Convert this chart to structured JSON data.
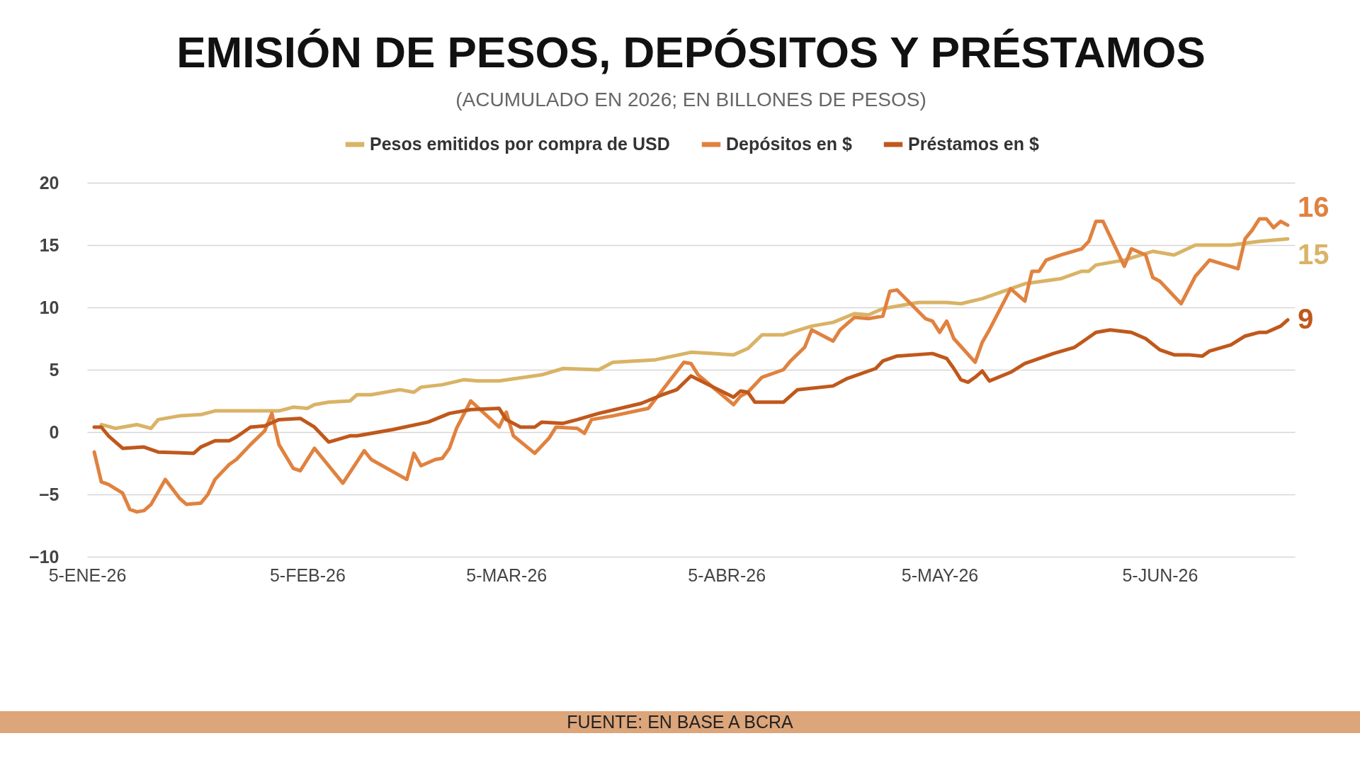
{
  "chart_data": {
    "type": "line",
    "title": "EMISIÓN DE PESOS, DEPÓSITOS Y PRÉSTAMOS",
    "subtitle": "(ACUMULADO EN 2026; EN BILLONES DE PESOS)",
    "series": [
      {
        "name": "Pesos emitidos por compra de USD",
        "color": "#d9b366",
        "x": [
          "2026-01-07",
          "2026-01-09",
          "2026-01-12",
          "2026-01-14",
          "2026-01-15",
          "2026-01-18",
          "2026-01-21",
          "2026-01-23",
          "2026-02-01",
          "2026-02-03",
          "2026-02-05",
          "2026-02-06",
          "2026-02-08",
          "2026-02-11",
          "2026-02-12",
          "2026-02-14",
          "2026-02-18",
          "2026-02-20",
          "2026-02-21",
          "2026-02-24",
          "2026-02-27",
          "2026-03-01",
          "2026-03-04",
          "2026-03-10",
          "2026-03-13",
          "2026-03-18",
          "2026-03-20",
          "2026-03-26",
          "2026-03-31",
          "2026-04-06",
          "2026-04-08",
          "2026-04-10",
          "2026-04-13",
          "2026-04-17",
          "2026-04-20",
          "2026-04-23",
          "2026-04-25",
          "2026-04-27",
          "2026-05-02",
          "2026-05-06",
          "2026-05-08",
          "2026-05-11",
          "2026-05-17",
          "2026-05-22",
          "2026-05-25",
          "2026-05-26",
          "2026-05-27",
          "2026-05-31",
          "2026-06-04",
          "2026-06-07",
          "2026-06-10",
          "2026-06-15",
          "2026-06-19",
          "2026-06-23"
        ],
        "values": [
          0.6,
          0.3,
          0.6,
          0.3,
          1.0,
          1.3,
          1.4,
          1.7,
          1.7,
          2.0,
          1.9,
          2.2,
          2.4,
          2.5,
          3.0,
          3.0,
          3.4,
          3.2,
          3.6,
          3.8,
          4.2,
          4.1,
          4.1,
          4.6,
          5.1,
          5.0,
          5.6,
          5.8,
          6.4,
          6.2,
          6.7,
          7.8,
          7.8,
          8.5,
          8.8,
          9.5,
          9.4,
          9.9,
          10.4,
          10.4,
          10.3,
          10.7,
          11.9,
          12.3,
          12.9,
          12.9,
          13.4,
          13.8,
          14.5,
          14.2,
          15.0,
          15.0,
          15.3,
          15.5
        ]
      },
      {
        "name": "Depósitos en $",
        "color": "#e0823f",
        "x": [
          "2026-01-06",
          "2026-01-07",
          "2026-01-08",
          "2026-01-10",
          "2026-01-11",
          "2026-01-12",
          "2026-01-13",
          "2026-01-14",
          "2026-01-15",
          "2026-01-16",
          "2026-01-18",
          "2026-01-19",
          "2026-01-21",
          "2026-01-22",
          "2026-01-23",
          "2026-01-25",
          "2026-01-26",
          "2026-01-28",
          "2026-01-30",
          "2026-01-31",
          "2026-02-01",
          "2026-02-03",
          "2026-02-04",
          "2026-02-06",
          "2026-02-08",
          "2026-02-10",
          "2026-02-13",
          "2026-02-14",
          "2026-02-19",
          "2026-02-20",
          "2026-02-21",
          "2026-02-23",
          "2026-02-24",
          "2026-02-25",
          "2026-02-26",
          "2026-02-28",
          "2026-03-04",
          "2026-03-05",
          "2026-03-06",
          "2026-03-09",
          "2026-03-11",
          "2026-03-12",
          "2026-03-15",
          "2026-03-16",
          "2026-03-17",
          "2026-03-20",
          "2026-03-25",
          "2026-03-30",
          "2026-03-31",
          "2026-04-01",
          "2026-04-06",
          "2026-04-07",
          "2026-04-08",
          "2026-04-10",
          "2026-04-13",
          "2026-04-14",
          "2026-04-16",
          "2026-04-17",
          "2026-04-20",
          "2026-04-21",
          "2026-04-23",
          "2026-04-25",
          "2026-04-27",
          "2026-04-28",
          "2026-04-29",
          "2026-05-03",
          "2026-05-04",
          "2026-05-05",
          "2026-05-06",
          "2026-05-07",
          "2026-05-10",
          "2026-05-11",
          "2026-05-12",
          "2026-05-15",
          "2026-05-17",
          "2026-05-18",
          "2026-05-19",
          "2026-05-20",
          "2026-05-22",
          "2026-05-25",
          "2026-05-26",
          "2026-05-27",
          "2026-05-28",
          "2026-05-31",
          "2026-06-01",
          "2026-06-03",
          "2026-06-04",
          "2026-06-05",
          "2026-06-08",
          "2026-06-10",
          "2026-06-12",
          "2026-06-16",
          "2026-06-17",
          "2026-06-18",
          "2026-06-19",
          "2026-06-20",
          "2026-06-21",
          "2026-06-22",
          "2026-06-23"
        ],
        "values": [
          -1.6,
          -4.0,
          -4.2,
          -4.9,
          -6.2,
          -6.4,
          -6.3,
          -5.8,
          -4.8,
          -3.8,
          -5.3,
          -5.8,
          -5.7,
          -5.0,
          -3.8,
          -2.6,
          -2.2,
          -1.0,
          0.1,
          1.5,
          -1.0,
          -2.9,
          -3.1,
          -1.3,
          -2.7,
          -4.1,
          -1.5,
          -2.2,
          -3.8,
          -1.7,
          -2.7,
          -2.2,
          -2.1,
          -1.3,
          0.3,
          2.5,
          0.4,
          1.6,
          -0.3,
          -1.7,
          -0.5,
          0.4,
          0.3,
          -0.1,
          1.0,
          1.3,
          1.9,
          5.6,
          5.5,
          4.6,
          2.2,
          2.9,
          3.2,
          4.4,
          5.0,
          5.7,
          6.8,
          8.2,
          7.3,
          8.2,
          9.2,
          9.1,
          9.3,
          11.3,
          11.4,
          9.1,
          8.9,
          8.0,
          8.9,
          7.5,
          5.6,
          7.2,
          8.2,
          11.5,
          10.5,
          12.9,
          12.9,
          13.8,
          14.2,
          14.7,
          15.3,
          16.9,
          16.9,
          13.3,
          14.7,
          14.2,
          12.4,
          12.1,
          10.3,
          12.5,
          13.8,
          13.1,
          15.5,
          16.2,
          17.1,
          17.1,
          16.4,
          16.9,
          16.6
        ]
      },
      {
        "name": "Préstamos en $",
        "color": "#c0581c",
        "x": [
          "2026-01-06",
          "2026-01-07",
          "2026-01-08",
          "2026-01-09",
          "2026-01-10",
          "2026-01-13",
          "2026-01-15",
          "2026-01-20",
          "2026-01-21",
          "2026-01-23",
          "2026-01-25",
          "2026-01-26",
          "2026-01-28",
          "2026-01-30",
          "2026-02-01",
          "2026-02-04",
          "2026-02-06",
          "2026-02-08",
          "2026-02-11",
          "2026-02-12",
          "2026-02-17",
          "2026-02-22",
          "2026-02-25",
          "2026-02-28",
          "2026-03-04",
          "2026-03-05",
          "2026-03-07",
          "2026-03-09",
          "2026-03-10",
          "2026-03-13",
          "2026-03-15",
          "2026-03-18",
          "2026-03-24",
          "2026-03-27",
          "2026-03-29",
          "2026-03-31",
          "2026-04-06",
          "2026-04-07",
          "2026-04-08",
          "2026-04-09",
          "2026-04-13",
          "2026-04-15",
          "2026-04-20",
          "2026-04-22",
          "2026-04-26",
          "2026-04-27",
          "2026-04-29",
          "2026-05-04",
          "2026-05-06",
          "2026-05-07",
          "2026-05-08",
          "2026-05-09",
          "2026-05-10",
          "2026-05-11",
          "2026-05-12",
          "2026-05-15",
          "2026-05-17",
          "2026-05-21",
          "2026-05-24",
          "2026-05-27",
          "2026-05-29",
          "2026-06-01",
          "2026-06-03",
          "2026-06-05",
          "2026-06-07",
          "2026-06-09",
          "2026-06-11",
          "2026-06-12",
          "2026-06-15",
          "2026-06-17",
          "2026-06-19",
          "2026-06-20",
          "2026-06-22",
          "2026-06-23"
        ],
        "values": [
          0.4,
          0.4,
          -0.3,
          -0.8,
          -1.3,
          -1.2,
          -1.6,
          -1.7,
          -1.2,
          -0.7,
          -0.7,
          -0.4,
          0.4,
          0.5,
          1.0,
          1.1,
          0.4,
          -0.8,
          -0.3,
          -0.3,
          0.2,
          0.8,
          1.5,
          1.8,
          1.9,
          1.0,
          0.4,
          0.4,
          0.8,
          0.7,
          1.0,
          1.5,
          2.3,
          3.0,
          3.4,
          4.5,
          2.8,
          3.3,
          3.2,
          2.4,
          2.4,
          3.4,
          3.7,
          4.3,
          5.1,
          5.7,
          6.1,
          6.3,
          5.9,
          5.1,
          4.2,
          4.0,
          4.4,
          4.9,
          4.1,
          4.8,
          5.5,
          6.3,
          6.8,
          8.0,
          8.2,
          8.0,
          7.5,
          6.6,
          6.2,
          6.2,
          6.1,
          6.5,
          7.0,
          7.7,
          8.0,
          8.0,
          8.5,
          9.0
        ]
      }
    ],
    "xlim": [
      "2026-01-05",
      "2026-06-24"
    ],
    "xticks": [
      {
        "value": "2026-01-05",
        "label": "5-ENE-26"
      },
      {
        "value": "2026-02-05",
        "label": "5-FEB-26"
      },
      {
        "value": "2026-03-05",
        "label": "5-MAR-26"
      },
      {
        "value": "2026-04-05",
        "label": "5-ABR-26"
      },
      {
        "value": "2026-05-05",
        "label": "5-MAY-26"
      },
      {
        "value": "2026-06-05",
        "label": "5-JUN-26"
      }
    ],
    "ylim": [
      -10,
      20
    ],
    "yticks": [
      -10,
      -5,
      0,
      5,
      10,
      15,
      20
    ],
    "grid": "y",
    "legend": "top",
    "line_style": "solid",
    "annotations": [
      {
        "text": "15",
        "x": "2026-06-23",
        "y": 15.5
      },
      {
        "text": "16",
        "x": "2026-06-23",
        "y": 16.6
      },
      {
        "text": "9",
        "x": "2026-06-23",
        "y": 9.0
      },
      "FUENTE: EN BASE A BCRA"
    ]
  }
}
